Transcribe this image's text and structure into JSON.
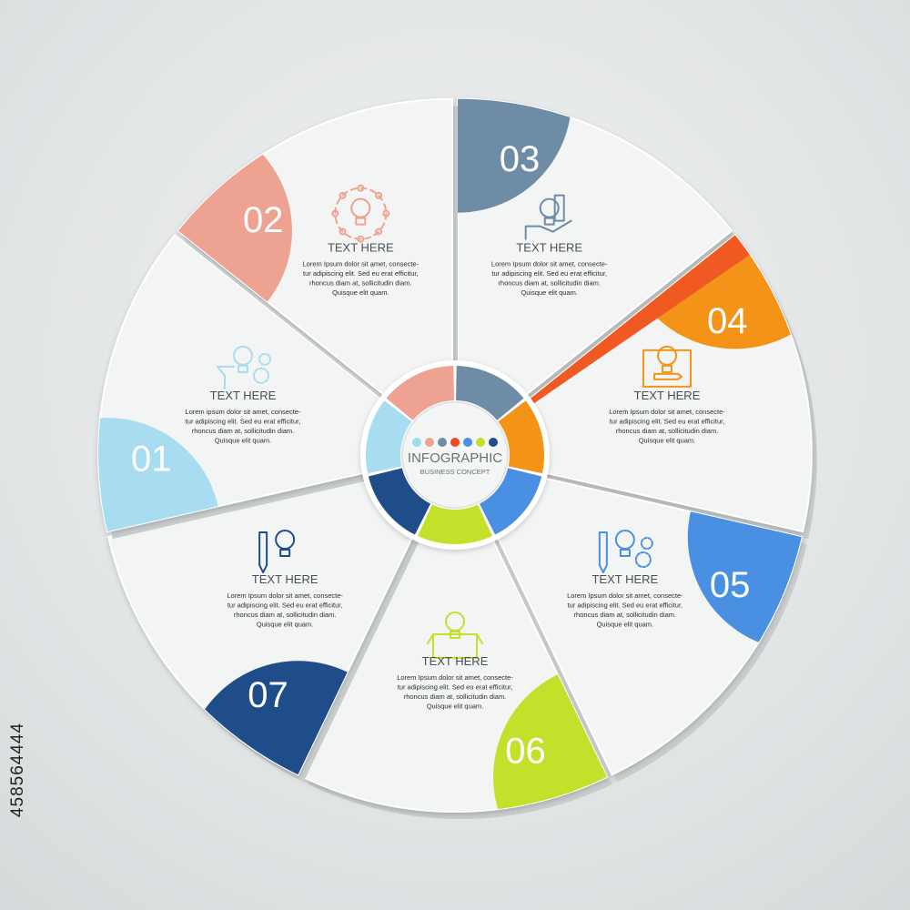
{
  "center": {
    "title": "INFOGRAPHIC",
    "subtitle": "BUSINESS CONCEPT",
    "dot_colors": [
      "#9fdcf0",
      "#eea292",
      "#6e8ca6",
      "#f0481e",
      "#4a90e2",
      "#c3e02a",
      "#1e4d8a"
    ]
  },
  "segments": [
    {
      "number": "03",
      "title": "TEXT HERE",
      "body": [
        "Lorem Ipsum dolor sit amet, consecte-",
        "tur adipiscing elit. Sed eu erat efficitur,",
        "rhoncus diam at, sollicitudin diam.",
        "Quisque elit quam."
      ],
      "color": "#6e8ca6",
      "icon": "hand-with-buildings-icon"
    },
    {
      "number": "04",
      "title": "TEXT HERE",
      "body": [
        "Lorem Ipsum dolor sit amet, consecte-",
        "tur adipiscing elit. Sed eu erat efficitur,",
        "rhoncus diam at, sollicitudin diam.",
        "Quisque elit quam."
      ],
      "color": "#f39419",
      "accent": "#f05a22",
      "icon": "lightbulb-board-icon"
    },
    {
      "number": "05",
      "title": "TEXT HERE",
      "body": [
        "Lorem Ipsum dolor sit amet, consecte-",
        "tur adipiscing elit. Sed eu erat efficitur,",
        "rhoncus diam at, sollicitudin diam.",
        "Quisque elit quam."
      ],
      "color": "#4a90e2",
      "icon": "pencil-gears-icon"
    },
    {
      "number": "06",
      "title": "TEXT HERE",
      "body": [
        "Lorem Ipsum dolor sit amet, consecte-",
        "tur adipiscing elit. Sed eu erat efficitur,",
        "rhoncus diam at, sollicitudin diam.",
        "Quisque elit quam."
      ],
      "color": "#c3e02a",
      "icon": "open-box-tools-icon"
    },
    {
      "number": "07",
      "title": "TEXT HERE",
      "body": [
        "Lorem Ipsum dolor sit amet, consecte-",
        "tur adipiscing elit. Sed eu erat efficitur,",
        "rhoncus diam at, sollicitudin diam.",
        "Quisque elit quam."
      ],
      "color": "#1e4d8a",
      "icon": "pencil-lightbulb-icon"
    },
    {
      "number": "01",
      "title": "TEXT HERE",
      "body": [
        "Lorem ipsum dolor sit amet, consecte-",
        "tur adipiscing elit. Sed eu erat efficitur,",
        "rhoncus diam at, sollicitudin diam.",
        "Quisque elit quam."
      ],
      "color": "#a8dcf0",
      "icon": "head-lightbulb-gears-icon"
    },
    {
      "number": "02",
      "title": "TEXT HERE",
      "body": [
        "Lorem Ipsum dolor sit amet, consecte-",
        "tur adipiscing elit. Sed eu erat efficitur,",
        "rhoncus diam at, sollicitudin diam.",
        "Quisque elit quam."
      ],
      "color": "#eea292",
      "icon": "lightbulb-network-icon"
    }
  ],
  "stock_id": "458564444"
}
